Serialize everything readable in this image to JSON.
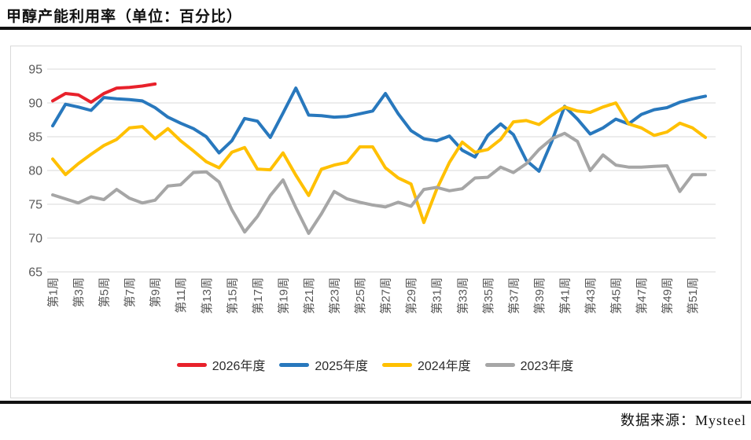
{
  "header": {
    "title": "甲醇产能利用率（单位：百分比）"
  },
  "footer": {
    "source": "数据来源：Mysteel"
  },
  "chart_data": {
    "type": "line",
    "title": "甲醇产能利用率（单位：百分比）",
    "ylabel": "百分比",
    "weeks": 52,
    "x_tick_labels": [
      "第1周",
      "第3周",
      "第5周",
      "第7周",
      "第9周",
      "第11周",
      "第13周",
      "第15周",
      "第17周",
      "第19周",
      "第21周",
      "第23周",
      "第25周",
      "第27周",
      "第29周",
      "第31周",
      "第33周",
      "第35周",
      "第37周",
      "第39周",
      "第41周",
      "第43周",
      "第45周",
      "第47周",
      "第49周",
      "第51周"
    ],
    "ylim": [
      65,
      95
    ],
    "ytick_step": 5,
    "grid": "horizontal",
    "grid_color": "#d9d9d9",
    "tick_color": "#595959",
    "legend_position": "bottom",
    "series": [
      {
        "name": "2026年度",
        "color": "#e8212b",
        "values": [
          90.3,
          91.4,
          91.2,
          90.1,
          91.4,
          92.2,
          92.3,
          92.5,
          92.8
        ]
      },
      {
        "name": "2025年度",
        "color": "#2878bd",
        "values": [
          86.6,
          89.8,
          89.4,
          88.9,
          90.8,
          90.6,
          90.5,
          90.3,
          89.3,
          87.9,
          87.0,
          86.2,
          85.0,
          82.6,
          84.4,
          87.7,
          87.3,
          84.9,
          88.5,
          92.2,
          88.2,
          88.1,
          87.9,
          88.0,
          88.4,
          88.8,
          91.4,
          88.4,
          85.9,
          84.7,
          84.4,
          85.1,
          83.0,
          82.0,
          85.2,
          86.9,
          85.3,
          81.5,
          79.9,
          84.3,
          89.5,
          87.6,
          85.4,
          86.3,
          87.6,
          86.9,
          88.3,
          89.0,
          89.3,
          90.1,
          90.6,
          91.0
        ]
      },
      {
        "name": "2024年度",
        "color": "#ffc000",
        "values": [
          81.7,
          79.4,
          81.0,
          82.4,
          83.7,
          84.6,
          86.3,
          86.5,
          84.7,
          86.2,
          84.4,
          82.9,
          81.3,
          80.4,
          82.7,
          83.4,
          80.2,
          80.1,
          82.6,
          79.3,
          76.3,
          80.2,
          80.8,
          81.2,
          83.5,
          83.5,
          80.4,
          78.9,
          78.0,
          72.3,
          77.2,
          81.2,
          84.2,
          82.7,
          83.1,
          84.6,
          87.2,
          87.4,
          86.8,
          88.2,
          89.4,
          88.8,
          88.6,
          89.4,
          90.0,
          86.9,
          86.3,
          85.2,
          85.7,
          87.0,
          86.3,
          84.9
        ]
      },
      {
        "name": "2023年度",
        "color": "#a6a6a6",
        "values": [
          76.4,
          75.8,
          75.2,
          76.1,
          75.7,
          77.2,
          75.9,
          75.2,
          75.6,
          77.7,
          77.9,
          79.7,
          79.8,
          78.3,
          74.2,
          70.9,
          73.2,
          76.3,
          78.6,
          74.5,
          70.7,
          73.6,
          76.9,
          75.8,
          75.3,
          74.9,
          74.6,
          75.3,
          74.7,
          77.2,
          77.5,
          77.0,
          77.3,
          78.9,
          79.0,
          80.5,
          79.7,
          81.0,
          83.1,
          84.7,
          85.5,
          84.3,
          80.0,
          82.3,
          80.8,
          80.5,
          80.5,
          80.6,
          80.7,
          76.9,
          79.4,
          79.4
        ]
      }
    ],
    "source": "数据来源：Mysteel"
  }
}
